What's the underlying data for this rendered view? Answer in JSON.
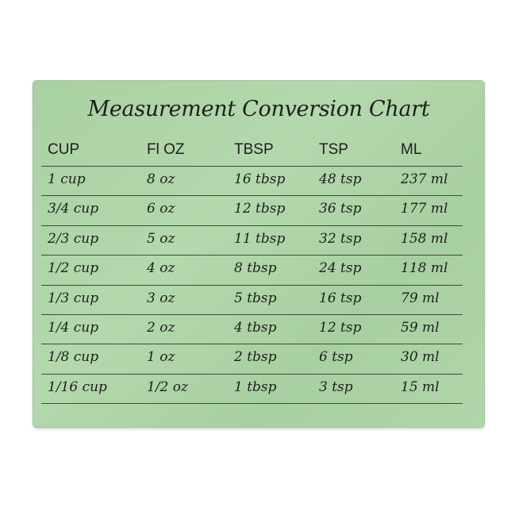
{
  "title": "Measurement Conversion Chart",
  "colors": {
    "board": "#b0d5aa",
    "text": "#1c1f1b",
    "rule": "#3d4a3a"
  },
  "headers": [
    "CUP",
    "Fl OZ",
    "TBSP",
    "TSP",
    "ML"
  ],
  "rows": [
    [
      "1 cup",
      "8 oz",
      "16 tbsp",
      "48 tsp",
      "237 ml"
    ],
    [
      "3/4 cup",
      "6 oz",
      "12 tbsp",
      "36 tsp",
      "177 ml"
    ],
    [
      "2/3 cup",
      "5 oz",
      "11 tbsp",
      "32 tsp",
      "158 ml"
    ],
    [
      "1/2 cup",
      "4 oz",
      "8 tbsp",
      "24 tsp",
      "118 ml"
    ],
    [
      "1/3 cup",
      "3 oz",
      "5 tbsp",
      "16 tsp",
      "79 ml"
    ],
    [
      "1/4 cup",
      "2 oz",
      "4 tbsp",
      "12 tsp",
      "59 ml"
    ],
    [
      "1/8 cup",
      "1 oz",
      "2 tbsp",
      "6 tsp",
      "30 ml"
    ],
    [
      "1/16 cup",
      "1/2 oz",
      "1 tbsp",
      "3 tsp",
      "15 ml"
    ]
  ]
}
